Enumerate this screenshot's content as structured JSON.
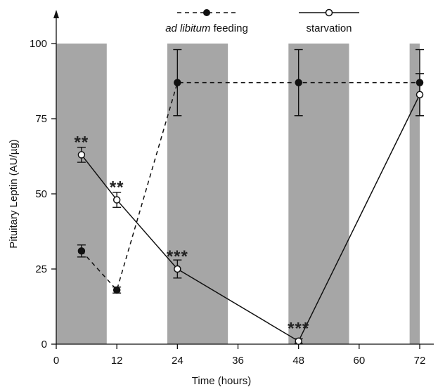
{
  "chart_data": {
    "type": "line",
    "xlabel": "Time (hours)",
    "ylabel": "Pituitary Leptin (AU/µg)",
    "xlim": [
      0,
      72
    ],
    "ylim": [
      0,
      100
    ],
    "xticks": [
      0,
      12,
      24,
      36,
      48,
      60,
      72
    ],
    "yticks": [
      0,
      25,
      50,
      75,
      100
    ],
    "xtick_labels": [
      "0",
      "12",
      "24",
      "36",
      "48",
      "60",
      "72"
    ],
    "ytick_labels": [
      "0",
      "25",
      "50",
      "75",
      "100"
    ],
    "dark_periods": [
      [
        0,
        10
      ],
      [
        22,
        34
      ],
      [
        46,
        58
      ],
      [
        70,
        72
      ]
    ],
    "legend_placement": "top",
    "legend": {
      "ad_libitum_italic": "ad libitum",
      "ad_libitum_rest": " feeding",
      "starvation": "starvation"
    },
    "series": [
      {
        "name": "ad libitum feeding",
        "style": "dashed",
        "marker": "filled",
        "color": "#000000",
        "x": [
          5,
          12,
          24,
          48,
          72
        ],
        "y": [
          31,
          18,
          87,
          87,
          87
        ],
        "err": [
          2,
          1,
          11,
          11,
          11
        ]
      },
      {
        "name": "starvation",
        "style": "solid",
        "marker": "open",
        "color": "#000000",
        "x": [
          5,
          12,
          24,
          48,
          72
        ],
        "y": [
          63,
          48,
          25,
          1,
          83
        ],
        "err": [
          2.5,
          2.5,
          3,
          0.8,
          7
        ]
      }
    ],
    "annotations": [
      {
        "text": "**",
        "x": 5,
        "y": 63
      },
      {
        "text": "**",
        "x": 12,
        "y": 48
      },
      {
        "text": "***",
        "x": 24,
        "y": 25
      },
      {
        "text": "***",
        "x": 48,
        "y": 1
      }
    ],
    "colors": {
      "dark_period": "#a6a6a6",
      "line": "#111111"
    }
  }
}
